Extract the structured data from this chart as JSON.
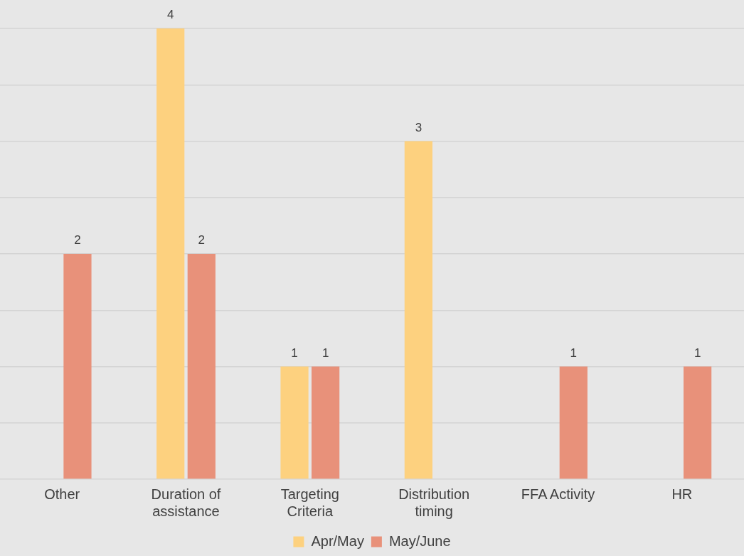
{
  "chart_data": {
    "type": "bar",
    "categories": [
      "Other",
      "Duration of assistance",
      "Targeting Criteria",
      "Distribution timing",
      "FFA Activity",
      "HR"
    ],
    "series": [
      {
        "name": "Apr/May",
        "color": "#fdd17f",
        "values": [
          null,
          4,
          1,
          3,
          null,
          null
        ]
      },
      {
        "name": "May/June",
        "color": "#e8917a",
        "values": [
          2,
          2,
          1,
          null,
          1,
          1
        ]
      }
    ],
    "ylim": [
      0,
      4
    ],
    "yticks": [
      {
        "value": 0,
        "label": null
      },
      {
        "value": 0.5,
        "label": null
      },
      {
        "value": 1,
        "label": null
      },
      {
        "value": 1.5,
        "label": null
      },
      {
        "value": 2,
        "label": null
      },
      {
        "value": 2.5,
        "label": null
      },
      {
        "value": 3,
        "label": null
      },
      {
        "value": 3.5,
        "label": null
      },
      {
        "value": 4,
        "label": null
      }
    ],
    "tick_labels": "x",
    "grid": "y",
    "legend": "bottom",
    "data_labels": true
  }
}
